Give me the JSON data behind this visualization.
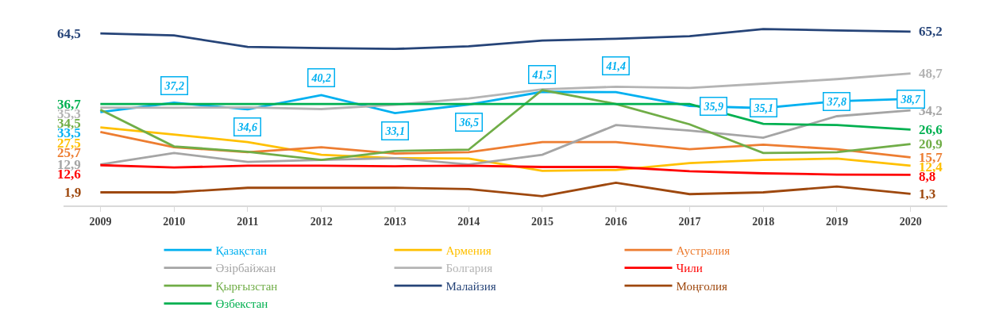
{
  "chart_data": {
    "type": "line",
    "categories": [
      "2009",
      "2010",
      "2011",
      "2012",
      "2013",
      "2014",
      "2015",
      "2016",
      "2017",
      "2018",
      "2019",
      "2020"
    ],
    "legend": "bottom",
    "marker": "none",
    "series": [
      {
        "name": "Қазақстан",
        "color": "#00b0f0",
        "values": [
          33.5,
          37.2,
          34.6,
          40.2,
          33.1,
          36.5,
          41.5,
          41.4,
          35.9,
          35.1,
          37.8,
          38.7
        ],
        "value_labels": [
          "33,5",
          "37,2",
          "34,6",
          "40,2",
          "33,1",
          "36,5",
          "41,5",
          "41,4",
          "35,9",
          "35,1",
          "37,8",
          "38,7"
        ]
      },
      {
        "name": "Армения",
        "color": "#ffc000",
        "values": [
          27.5,
          24.7,
          21.7,
          16.7,
          15.4,
          15.2,
          10.4,
          10.7,
          13.4,
          14.7,
          15.2,
          12.4
        ],
        "value_labels": [
          "27,5",
          null,
          null,
          null,
          null,
          null,
          null,
          null,
          null,
          null,
          null,
          "12,4"
        ]
      },
      {
        "name": "Аустралия",
        "color": "#ed7d31",
        "values": [
          25.7,
          19.7,
          17.7,
          19.7,
          17.2,
          17.7,
          21.7,
          21.7,
          18.9,
          20.7,
          18.9,
          15.7
        ],
        "value_labels": [
          "25,7",
          null,
          null,
          null,
          null,
          null,
          null,
          null,
          null,
          null,
          null,
          "15,7"
        ]
      },
      {
        "name": "Әзірбайжан",
        "color": "#a5a5a5",
        "values": [
          12.9,
          17.4,
          13.9,
          14.7,
          15.4,
          12.9,
          16.7,
          28.4,
          26.2,
          23.4,
          31.9,
          34.2
        ],
        "value_labels": [
          "12,9",
          null,
          null,
          null,
          null,
          null,
          null,
          null,
          null,
          null,
          null,
          "34,2"
        ]
      },
      {
        "name": "Болгария",
        "color": "#b4b4b4",
        "values": [
          35.3,
          35.2,
          35.4,
          34.7,
          36.4,
          38.9,
          42.5,
          43.5,
          43.0,
          44.7,
          46.5,
          48.7
        ],
        "value_labels": [
          "35,3",
          null,
          null,
          null,
          null,
          null,
          null,
          null,
          null,
          null,
          null,
          "48,7"
        ]
      },
      {
        "name": "Чили",
        "color": "#ff0000",
        "values": [
          12.6,
          11.7,
          12.4,
          12.4,
          12.2,
          12.4,
          11.9,
          11.9,
          10.2,
          9.4,
          8.9,
          8.8
        ],
        "value_labels": [
          "12,6",
          null,
          null,
          null,
          null,
          null,
          null,
          null,
          null,
          null,
          null,
          "8,8"
        ]
      },
      {
        "name": "Қырғызстан",
        "color": "#70ad47",
        "values": [
          34.5,
          20.0,
          17.9,
          14.7,
          18.2,
          18.7,
          42.2,
          36.7,
          28.7,
          17.4,
          17.7,
          20.9
        ],
        "value_labels": [
          "34,5",
          null,
          null,
          null,
          null,
          null,
          null,
          null,
          null,
          null,
          null,
          "20,9"
        ]
      },
      {
        "name": "Малайзия",
        "color": "#264478",
        "values": [
          64.5,
          63.7,
          59.2,
          58.7,
          58.4,
          59.4,
          61.7,
          62.4,
          63.4,
          66.2,
          65.7,
          65.2
        ],
        "value_labels": [
          "64,5",
          null,
          null,
          null,
          null,
          null,
          null,
          null,
          null,
          null,
          null,
          "65,2"
        ]
      },
      {
        "name": "Моңғолия",
        "color": "#9e480e",
        "values": [
          1.9,
          1.9,
          3.7,
          3.7,
          3.7,
          3.2,
          0.4,
          5.7,
          1.2,
          1.9,
          4.2,
          1.3
        ],
        "value_labels": [
          "1,9",
          null,
          null,
          null,
          null,
          null,
          null,
          null,
          null,
          null,
          null,
          "1,3"
        ]
      },
      {
        "name": "Өзбекстан",
        "color": "#00b050",
        "values": [
          36.7,
          36.7,
          36.7,
          36.7,
          36.7,
          36.7,
          36.7,
          36.7,
          36.7,
          28.9,
          28.4,
          26.6
        ],
        "value_labels": [
          "36,7",
          null,
          null,
          null,
          null,
          null,
          null,
          null,
          null,
          null,
          null,
          "26,6"
        ]
      }
    ]
  }
}
